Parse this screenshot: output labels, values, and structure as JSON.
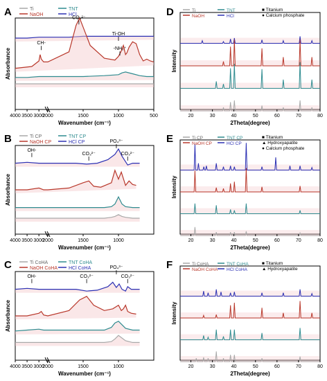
{
  "colors": {
    "ti": "#a9a9a9",
    "naoh": "#b8372a",
    "tnt": "#2e8b8f",
    "hcl": "#2a2fb3",
    "fill": "#f3c9cc"
  },
  "chart_data": [
    {
      "panel": "A",
      "type": "line",
      "xlabel": "Wavenumber (cm⁻¹)",
      "ylabel": "Absorbance",
      "xticks": [
        "4000",
        "3500",
        "3000",
        "2000",
        "1500",
        "1000",
        "500"
      ],
      "legend": [
        "Ti",
        "TNT",
        "NaOH",
        "HCl"
      ],
      "annotations": [
        "CO₃²⁻",
        "CH-",
        "Ti-OH",
        "-NH₂⁺"
      ],
      "series": [
        {
          "name": "HCl",
          "x": [
            4000,
            3500,
            3000,
            2800,
            2000,
            1700,
            1500,
            1200,
            1000,
            900,
            800,
            700,
            600,
            500
          ],
          "y": [
            0.78,
            0.78,
            0.79,
            0.79,
            0.79,
            0.79,
            0.8,
            0.8,
            0.8,
            0.8,
            0.8,
            0.8,
            0.8,
            0.8
          ]
        },
        {
          "name": "NaOH",
          "x": [
            4000,
            3300,
            3000,
            2950,
            2900,
            2800,
            2000,
            1700,
            1600,
            1550,
            1500,
            1400,
            1200,
            1050,
            1000,
            960,
            930,
            900,
            880,
            850,
            800,
            750,
            700,
            650,
            600,
            550,
            500
          ],
          "y": [
            0.45,
            0.47,
            0.53,
            0.6,
            0.55,
            0.52,
            0.52,
            0.63,
            0.92,
            1.0,
            0.9,
            0.7,
            0.56,
            0.54,
            0.58,
            0.64,
            0.7,
            0.6,
            0.62,
            0.68,
            0.74,
            0.72,
            0.6,
            0.53,
            0.55,
            0.53,
            0.52
          ]
        },
        {
          "name": "TNT",
          "x": [
            4000,
            3500,
            3000,
            2800,
            2000,
            1600,
            1500,
            1200,
            1000,
            950,
            900,
            800,
            700,
            600,
            500
          ],
          "y": [
            0.35,
            0.35,
            0.36,
            0.36,
            0.36,
            0.36,
            0.36,
            0.37,
            0.38,
            0.4,
            0.41,
            0.39,
            0.37,
            0.36,
            0.36
          ]
        },
        {
          "name": "Ti",
          "x": [
            4000,
            3000,
            2800,
            2000,
            1500,
            1000,
            500
          ],
          "y": [
            0.28,
            0.28,
            0.28,
            0.28,
            0.28,
            0.28,
            0.28
          ]
        }
      ]
    },
    {
      "panel": "B",
      "type": "line",
      "xlabel": "Wavenumber (cm⁻¹)",
      "ylabel": "Absorbance",
      "xticks": [
        "4000",
        "3500",
        "3000",
        "2000",
        "1500",
        "1000"
      ],
      "legend": [
        "Ti CP",
        "TNT CP",
        "NaOH CP",
        "HCl CP"
      ],
      "annotations": [
        "OH-",
        "CO₃²⁻",
        "PO₄³⁻",
        "CO₃²⁻"
      ],
      "series": [
        {
          "name": "HCl CP",
          "x": [
            4000,
            3500,
            3000,
            2800,
            2000,
            1600,
            1450,
            1300,
            1150,
            1050,
            1000,
            950,
            870,
            800,
            700
          ],
          "y": [
            0.8,
            0.81,
            0.8,
            0.8,
            0.8,
            0.8,
            0.79,
            0.8,
            0.84,
            0.9,
            0.96,
            0.88,
            0.78,
            0.8,
            0.8
          ]
        },
        {
          "name": "NaOH CP",
          "x": [
            4000,
            3500,
            3000,
            2800,
            2000,
            1700,
            1500,
            1420,
            1350,
            1250,
            1100,
            1050,
            1000,
            960,
            900,
            850,
            800,
            750
          ],
          "y": [
            0.5,
            0.5,
            0.52,
            0.5,
            0.5,
            0.52,
            0.58,
            0.6,
            0.54,
            0.53,
            0.58,
            0.72,
            0.62,
            0.7,
            0.55,
            0.6,
            0.56,
            0.55
          ]
        },
        {
          "name": "TNT CP",
          "x": [
            4000,
            3000,
            2800,
            2000,
            1500,
            1200,
            1100,
            1050,
            1000,
            950,
            900,
            800,
            700
          ],
          "y": [
            0.3,
            0.3,
            0.3,
            0.3,
            0.3,
            0.3,
            0.31,
            0.34,
            0.42,
            0.34,
            0.31,
            0.3,
            0.3
          ]
        },
        {
          "name": "Ti CP",
          "x": [
            4000,
            3000,
            2800,
            2000,
            1500,
            1200,
            1100,
            1050,
            1000,
            950,
            900,
            800,
            700
          ],
          "y": [
            0.18,
            0.18,
            0.18,
            0.18,
            0.18,
            0.18,
            0.19,
            0.2,
            0.22,
            0.2,
            0.19,
            0.18,
            0.18
          ]
        }
      ]
    },
    {
      "panel": "C",
      "type": "line",
      "xlabel": "Wavenumber (cm⁻¹)",
      "ylabel": "Absorbance",
      "xticks": [
        "4000",
        "3500",
        "3000",
        "2000",
        "1500",
        "1000"
      ],
      "legend": [
        "Ti CoHA",
        "TNT CoHA",
        "NaOH CoHA",
        "HCl CoHA"
      ],
      "annotations": [
        "OH-",
        "CO₃²⁻",
        "PO₄³⁻",
        "CO₃²⁻"
      ],
      "series": [
        {
          "name": "HCl CoHA",
          "x": [
            4000,
            3500,
            3000,
            2800,
            2000,
            1600,
            1450,
            1300,
            1150,
            1080,
            1030,
            990,
            950,
            900,
            870,
            820,
            700
          ],
          "y": [
            0.8,
            0.81,
            0.8,
            0.8,
            0.8,
            0.8,
            0.78,
            0.79,
            0.83,
            0.88,
            0.82,
            0.86,
            0.8,
            0.78,
            0.83,
            0.8,
            0.8
          ]
        },
        {
          "name": "NaOH CoHA",
          "x": [
            4000,
            3500,
            3000,
            2900,
            2800,
            2000,
            1700,
            1550,
            1450,
            1350,
            1200,
            1080,
            1000,
            960,
            930,
            900,
            870,
            820,
            750
          ],
          "y": [
            0.5,
            0.5,
            0.53,
            0.55,
            0.51,
            0.5,
            0.56,
            0.68,
            0.72,
            0.62,
            0.56,
            0.58,
            0.62,
            0.56,
            0.58,
            0.62,
            0.55,
            0.53,
            0.52
          ]
        },
        {
          "name": "TNT CoHA",
          "x": [
            4000,
            3500,
            3000,
            2800,
            2000,
            1500,
            1200,
            1100,
            1050,
            1000,
            950,
            900,
            800,
            700
          ],
          "y": [
            0.33,
            0.34,
            0.35,
            0.34,
            0.34,
            0.34,
            0.34,
            0.37,
            0.42,
            0.44,
            0.4,
            0.36,
            0.34,
            0.34
          ]
        },
        {
          "name": "Ti CoHA",
          "x": [
            4000,
            3000,
            2800,
            2000,
            1500,
            1200,
            1100,
            1050,
            1000,
            950,
            900,
            800,
            700
          ],
          "y": [
            0.2,
            0.2,
            0.2,
            0.2,
            0.2,
            0.2,
            0.21,
            0.24,
            0.28,
            0.25,
            0.22,
            0.2,
            0.2
          ]
        }
      ]
    },
    {
      "panel": "D",
      "type": "line",
      "xlabel": "2Theta(degree)",
      "ylabel": "Intensity",
      "xticks": [
        "20",
        "30",
        "40",
        "50",
        "60",
        "70",
        "80"
      ],
      "legend": [
        "Ti",
        "TNT",
        "NaOH",
        "HCl"
      ],
      "markers": [
        "Titanium",
        "Calcium phosphate"
      ],
      "series": [
        {
          "name": "HCl",
          "peaks": [
            [
              25.3,
              0.03
            ],
            [
              35.1,
              0.02
            ],
            [
              38.4,
              0.05
            ],
            [
              40.2,
              0.06
            ],
            [
              53.0,
              0.04
            ],
            [
              62.9,
              0.03
            ],
            [
              70.7,
              0.08
            ],
            [
              76.2,
              0.03
            ]
          ]
        },
        {
          "name": "NaOH",
          "peaks": [
            [
              35.1,
              0.05
            ],
            [
              38.4,
              0.22
            ],
            [
              40.2,
              0.3
            ],
            [
              53.0,
              0.2
            ],
            [
              62.9,
              0.1
            ],
            [
              70.7,
              0.3
            ],
            [
              76.2,
              0.1
            ]
          ]
        },
        {
          "name": "TNT",
          "peaks": [
            [
              31.8,
              0.08
            ],
            [
              35.1,
              0.05
            ],
            [
              38.4,
              0.23
            ],
            [
              40.2,
              0.28
            ],
            [
              53.0,
              0.22
            ],
            [
              62.9,
              0.1
            ],
            [
              70.7,
              0.3
            ],
            [
              76.2,
              0.1
            ]
          ]
        },
        {
          "name": "Ti",
          "peaks": [
            [
              35.1,
              0.04
            ],
            [
              38.4,
              0.1
            ],
            [
              40.2,
              0.12
            ],
            [
              53.0,
              0.06
            ],
            [
              62.9,
              0.04
            ],
            [
              70.7,
              0.12
            ],
            [
              76.2,
              0.04
            ]
          ]
        }
      ]
    },
    {
      "panel": "E",
      "type": "line",
      "xlabel": "2Theta(degree)",
      "ylabel": "Intensity",
      "xticks": [
        "20",
        "30",
        "40",
        "50",
        "60",
        "70",
        "80"
      ],
      "legend": [
        "Ti CP",
        "TNT CP",
        "NaOH CP",
        "HCl CP"
      ],
      "markers": [
        "Titanium",
        "Hydroxyapatite",
        "Calcium phosphate"
      ],
      "series": [
        {
          "name": "HCl CP",
          "peaks": [
            [
              21.9,
              0.3
            ],
            [
              23.5,
              0.08
            ],
            [
              26.0,
              0.04
            ],
            [
              27.2,
              0.05
            ],
            [
              31.8,
              0.08
            ],
            [
              35.1,
              0.04
            ],
            [
              38.4,
              0.05
            ],
            [
              40.2,
              0.04
            ],
            [
              45.7,
              0.32
            ],
            [
              53.0,
              0.04
            ],
            [
              59.4,
              0.15
            ],
            [
              66.0,
              0.05
            ],
            [
              70.7,
              0.05
            ],
            [
              76.2,
              0.03
            ]
          ]
        },
        {
          "name": "NaOH CP",
          "peaks": [
            [
              21.9,
              0.25
            ],
            [
              31.8,
              0.05
            ],
            [
              35.1,
              0.04
            ],
            [
              38.4,
              0.1
            ],
            [
              40.2,
              0.12
            ],
            [
              45.7,
              0.28
            ],
            [
              53.0,
              0.06
            ],
            [
              70.7,
              0.07
            ]
          ]
        },
        {
          "name": "TNT CP",
          "peaks": [
            [
              21.9,
              0.12
            ],
            [
              31.8,
              0.1
            ],
            [
              38.4,
              0.05
            ],
            [
              40.2,
              0.04
            ],
            [
              45.7,
              0.12
            ],
            [
              70.7,
              0.04
            ]
          ]
        },
        {
          "name": "Ti CP",
          "peaks": [
            [
              21.9,
              0.1
            ],
            [
              31.8,
              0.04
            ],
            [
              38.4,
              0.04
            ],
            [
              40.2,
              0.04
            ],
            [
              45.7,
              0.05
            ],
            [
              70.7,
              0.03
            ]
          ]
        }
      ]
    },
    {
      "panel": "F",
      "type": "line",
      "xlabel": "2Theta(degree)",
      "ylabel": "Intensity",
      "xticks": [
        "20",
        "30",
        "40",
        "50",
        "60",
        "70",
        "80"
      ],
      "legend": [
        "Ti CoHA",
        "TNT CoHA",
        "NaOH CoHA",
        "HCl CoHA"
      ],
      "markers": [
        "Titanium",
        "Hydroxyapatite"
      ],
      "series": [
        {
          "name": "HCl CoHA",
          "peaks": [
            [
              25.9,
              0.06
            ],
            [
              28.0,
              0.04
            ],
            [
              31.8,
              0.08
            ],
            [
              34.0,
              0.05
            ],
            [
              38.4,
              0.04
            ],
            [
              40.2,
              0.05
            ],
            [
              53.0,
              0.04
            ],
            [
              62.9,
              0.04
            ],
            [
              70.7,
              0.08
            ],
            [
              76.2,
              0.03
            ]
          ]
        },
        {
          "name": "NaOH CoHA",
          "peaks": [
            [
              25.9,
              0.03
            ],
            [
              31.8,
              0.04
            ],
            [
              38.4,
              0.15
            ],
            [
              40.2,
              0.18
            ],
            [
              53.0,
              0.12
            ],
            [
              62.9,
              0.06
            ],
            [
              70.7,
              0.2
            ],
            [
              76.2,
              0.06
            ]
          ]
        },
        {
          "name": "TNT CoHA",
          "peaks": [
            [
              25.9,
              0.05
            ],
            [
              28.0,
              0.03
            ],
            [
              31.8,
              0.12
            ],
            [
              35.1,
              0.04
            ],
            [
              38.4,
              0.12
            ],
            [
              40.2,
              0.12
            ],
            [
              53.0,
              0.08
            ],
            [
              70.7,
              0.14
            ]
          ]
        },
        {
          "name": "Ti CoHA",
          "peaks": [
            [
              22.5,
              0.04
            ],
            [
              25.9,
              0.05
            ],
            [
              28.0,
              0.04
            ],
            [
              31.8,
              0.12
            ],
            [
              35.1,
              0.04
            ],
            [
              38.4,
              0.08
            ],
            [
              40.2,
              0.08
            ],
            [
              53.0,
              0.04
            ],
            [
              70.7,
              0.06
            ]
          ]
        }
      ]
    }
  ]
}
